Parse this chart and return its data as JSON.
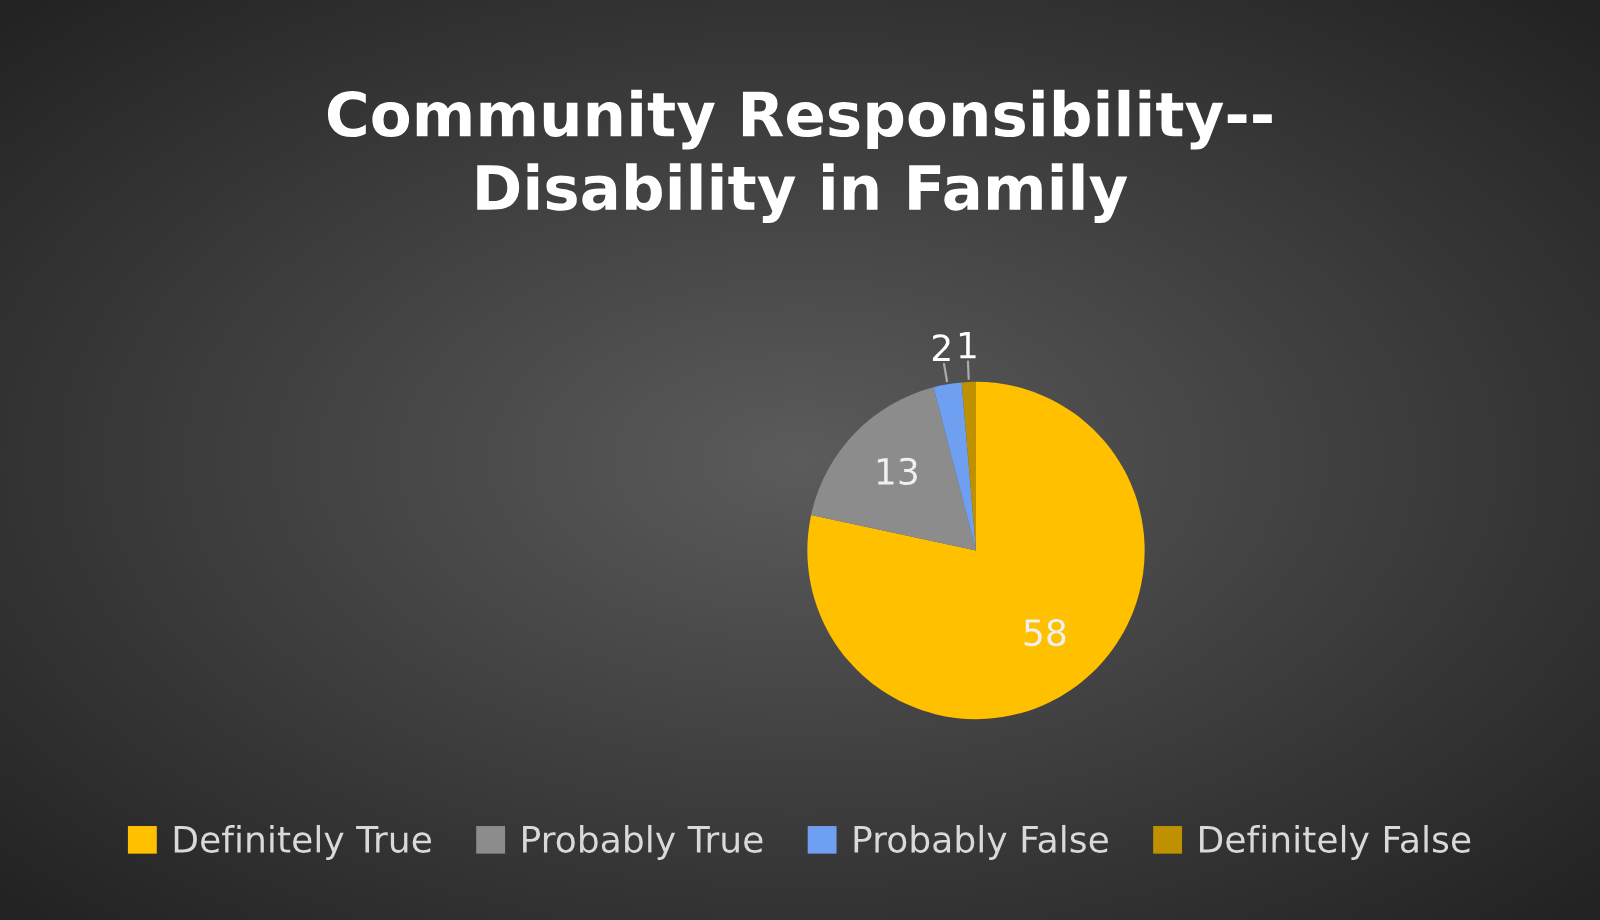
{
  "chart_data": {
    "type": "pie",
    "title": "Community Responsibility--\nDisability in Family",
    "categories": [
      "Definitely True",
      "Probably True",
      "Probably False",
      "Definitely False"
    ],
    "values": [
      58,
      13,
      2,
      1
    ],
    "colors": [
      "#ffc000",
      "#8c8c8c",
      "#6f9ff0",
      "#bf9000"
    ],
    "data_labels": true,
    "legend": "bottom"
  }
}
